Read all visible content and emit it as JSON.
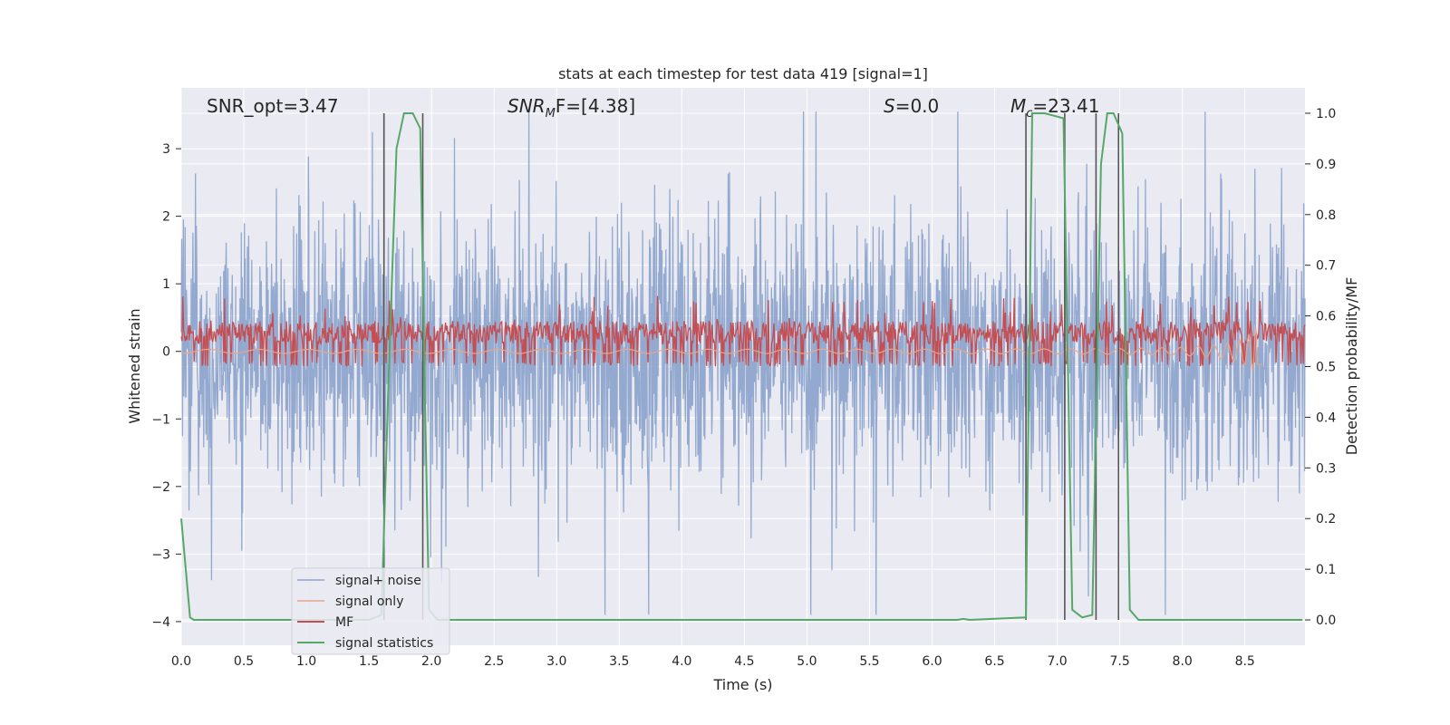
{
  "chart_data": {
    "type": "line",
    "title": "stats at each timestep for test data 419 [signal=1]",
    "xlabel": "Time (s)",
    "ylabel_left": "Whitened strain",
    "ylabel_right": "Detection probability/MF",
    "xlim": [
      0,
      8.98
    ],
    "ylim_left": [
      -4.35,
      3.9
    ],
    "ylim_right": [
      -0.05,
      1.05
    ],
    "x_ticks": [
      0.0,
      0.5,
      1.0,
      1.5,
      2.0,
      2.5,
      3.0,
      3.5,
      4.0,
      4.5,
      5.0,
      5.5,
      6.0,
      6.5,
      7.0,
      7.5,
      8.0,
      8.5
    ],
    "x_tick_labels": [
      "0.0",
      "0.5",
      "1.0",
      "1.5",
      "2.0",
      "2.5",
      "3.0",
      "3.5",
      "4.0",
      "4.5",
      "5.0",
      "5.5",
      "6.0",
      "6.5",
      "7.0",
      "7.5",
      "8.0",
      "8.5"
    ],
    "y_left_ticks": [
      3,
      2,
      1,
      0,
      -1,
      -2,
      -3,
      -4
    ],
    "y_left_tick_labels": [
      "3",
      "2",
      "1",
      "0",
      "−1",
      "−2",
      "−3",
      "−4"
    ],
    "y_right_ticks": [
      1.0,
      0.9,
      0.8,
      0.7,
      0.6,
      0.5,
      0.4,
      0.3,
      0.2,
      0.1,
      0.0
    ],
    "y_right_tick_labels": [
      "1.0",
      "0.9",
      "0.8",
      "0.7",
      "0.6",
      "0.5",
      "0.4",
      "0.3",
      "0.2",
      "0.1",
      "0.0"
    ],
    "grid": true,
    "legend_position": "lower-left",
    "annotations": [
      {
        "id": "snr-opt",
        "main": "SNR_opt=3.47",
        "sub": "",
        "rest": ""
      },
      {
        "id": "snr-mf",
        "main": "SNR",
        "sub": "M",
        "rest": "F=[4.38]"
      },
      {
        "id": "s-val",
        "main": "S",
        "sub": "",
        "rest": "=0.0"
      },
      {
        "id": "mc-val",
        "main": "M",
        "sub": "c",
        "rest": "=23.41"
      }
    ],
    "series": [
      {
        "name": "signal+ noise",
        "color": "#8fa5cc",
        "envelope": {
          "typical": 1.35,
          "peak": 3.4
        }
      },
      {
        "name": "signal only",
        "color": "#e8a58a"
      },
      {
        "name": "MF",
        "color": "#c44e52",
        "axis": "right"
      },
      {
        "name": "signal statistics",
        "color": "#55a868",
        "axis": "right",
        "x": [
          0.0,
          0.07,
          0.1,
          0.15,
          1.5,
          1.6,
          1.66,
          1.72,
          1.78,
          1.85,
          1.91,
          1.95,
          1.98,
          2.05,
          6.2,
          6.25,
          6.3,
          6.75,
          6.8,
          6.9,
          7.05,
          7.12,
          7.2,
          7.28,
          7.35,
          7.4,
          7.45,
          7.52,
          7.58,
          7.65,
          8.96
        ],
        "y": [
          0.2,
          0.005,
          0.0,
          0.0,
          0.0,
          0.01,
          0.5,
          0.93,
          1.0,
          1.0,
          0.97,
          0.4,
          0.02,
          0.0,
          0.0,
          0.002,
          0.0,
          0.005,
          1.0,
          1.0,
          0.99,
          0.02,
          0.005,
          0.01,
          0.9,
          1.0,
          1.0,
          0.96,
          0.02,
          0.0,
          0.0
        ]
      }
    ],
    "vertical_lines": [
      1.62,
      1.93,
      6.75,
      7.06,
      7.31,
      7.49
    ],
    "mf_band": {
      "low": 0.545,
      "high": 0.59,
      "spike": 0.64
    },
    "signal_only_chirp_end": 8.62
  },
  "colors": {
    "plot_bg": "#eaeaf2",
    "grid": "#ffffff",
    "vline": "#555555"
  }
}
